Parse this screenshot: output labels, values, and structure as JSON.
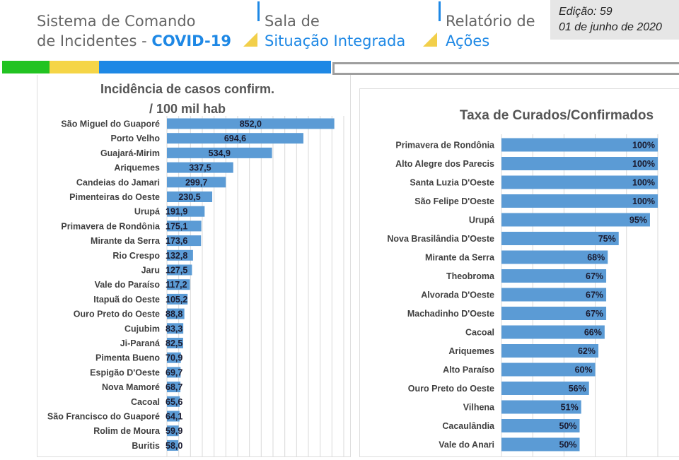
{
  "header": {
    "system_line1": "Sistema de Comando",
    "system_line2_prefix": "de Incidentes - ",
    "system_line2_highlight": "COVID-19",
    "room_line1": "Sala de",
    "room_line2": "Situação Integrada",
    "report_line1": "Relatório de",
    "report_line2": "Ações",
    "edition": "Edição: 59",
    "date": "01 de  junho de 2020"
  },
  "colors": {
    "green": "#22c322",
    "yellow": "#f5d547",
    "blue": "#1e88e5",
    "bar": "#5b9bd5",
    "gray": "#9e9e9e"
  },
  "chart_data": [
    {
      "type": "bar",
      "orientation": "horizontal",
      "title_line1": "Incidência de casos confirm.",
      "title_line2": "/ 100 mil hab",
      "xlim": [
        0,
        900
      ],
      "grid_step": 60,
      "categories": [
        "São Miguel do Guaporé",
        "Porto Velho",
        "Guajará-Mirim",
        "Ariquemes",
        "Candeias do Jamari",
        "Pimenteiras do Oeste",
        "Urupá",
        "Primavera de Rondônia",
        "Mirante da Serra",
        "Rio Crespo",
        "Jaru",
        "Vale do Paraíso",
        "Itapuã do Oeste",
        "Ouro Preto do Oeste",
        "Cujubim",
        "Ji-Paraná",
        "Pimenta Bueno",
        "Espigão D'Oeste",
        "Nova Mamoré",
        "Cacoal",
        "São Francisco do Guaporé",
        "Rolim de Moura",
        "Buritis"
      ],
      "values": [
        852.0,
        694.6,
        534.9,
        337.5,
        299.7,
        230.5,
        191.9,
        175.1,
        173.6,
        132.8,
        127.5,
        117.2,
        105.2,
        88.8,
        83.3,
        82.5,
        70.9,
        69.7,
        68.7,
        65.6,
        64.1,
        59.9,
        58.0
      ],
      "labels": [
        "852,0",
        "694,6",
        "534,9",
        "337,5",
        "299,7",
        "230,5",
        "191,9",
        "175,1",
        "173,6",
        "132,8",
        "127,5",
        "117,2",
        "105,2",
        "88,8",
        "83,3",
        "82,5",
        "70,9",
        "69,7",
        "68,7",
        "65,6",
        "64,1",
        "59,9",
        "58,0"
      ]
    },
    {
      "type": "bar",
      "orientation": "horizontal",
      "title": "Taxa de Curados/Confirmados",
      "xlim": [
        0,
        100
      ],
      "grid_step": 20,
      "categories": [
        "Primavera de Rondônia",
        "Alto Alegre dos Parecis",
        "Santa Luzia D'Oeste",
        "São Felipe D'Oeste",
        "Urupá",
        "Nova Brasilândia D'Oeste",
        "Mirante da Serra",
        "Theobroma",
        "Alvorada D'Oeste",
        "Machadinho D'Oeste",
        "Cacoal",
        "Ariquemes",
        "Alto Paraíso",
        "Ouro Preto do Oeste",
        "Vilhena",
        "Cacaulândia",
        "Vale do Anari"
      ],
      "values": [
        100,
        100,
        100,
        100,
        95,
        75,
        68,
        67,
        67,
        67,
        66,
        62,
        60,
        56,
        51,
        50,
        50
      ],
      "labels": [
        "100%",
        "100%",
        "100%",
        "100%",
        "95%",
        "75%",
        "68%",
        "67%",
        "67%",
        "67%",
        "66%",
        "62%",
        "60%",
        "56%",
        "51%",
        "50%",
        "50%"
      ]
    }
  ]
}
